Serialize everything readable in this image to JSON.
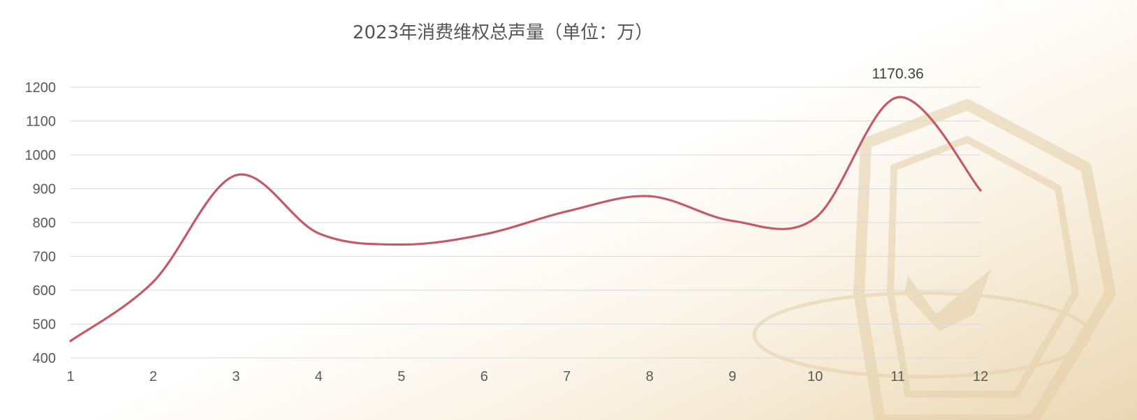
{
  "chart_data": {
    "type": "line",
    "title": "2023年消费维权总声量（单位：万）",
    "xlabel": "",
    "ylabel": "",
    "categories": [
      "1",
      "2",
      "3",
      "4",
      "5",
      "6",
      "7",
      "8",
      "9",
      "10",
      "11",
      "12"
    ],
    "series": [
      {
        "values": [
          450,
          625,
          940,
          768,
          735,
          765,
          833,
          878,
          805,
          813,
          1170.36,
          895
        ]
      }
    ],
    "ylim": [
      400,
      1200
    ],
    "yticks": [
      "400",
      "500",
      "600",
      "700",
      "800",
      "900",
      "1000",
      "1100",
      "1200"
    ],
    "data_labels": [
      {
        "index": 10,
        "text": "1170.36"
      }
    ],
    "line_style": "smooth",
    "grid": true,
    "legend": "none",
    "colors": {
      "series": "#c45a67",
      "grid": "#d9d9d9",
      "text": "#595959",
      "watermark": "#e4cfa8"
    },
    "background": {
      "watermark_icon": "shield-check-icon"
    }
  }
}
